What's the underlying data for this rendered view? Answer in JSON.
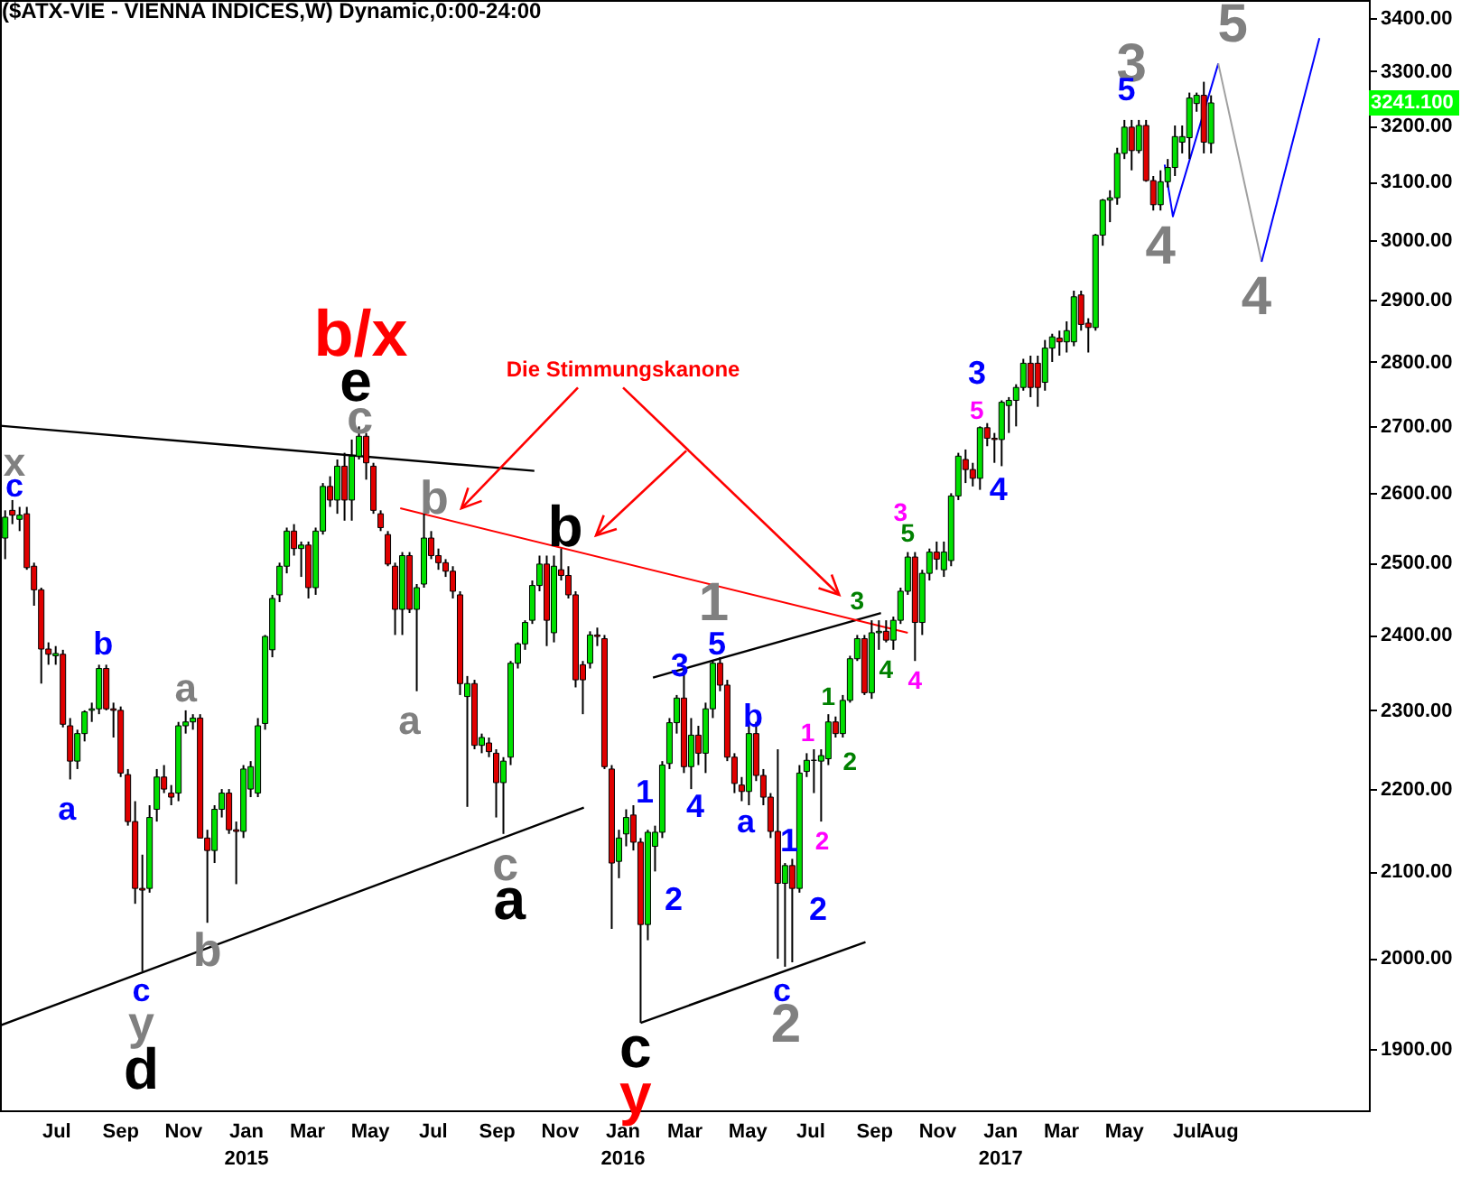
{
  "chart_data": {
    "type": "candlestick",
    "title": "($ATX-VIE - VIENNA INDICES,W) Dynamic,0:00-24:00",
    "log": true,
    "xlim": [
      "2014-05-07",
      "2017-12-24"
    ],
    "xticks": [
      {
        "value": "2014-07",
        "label": "Jul"
      },
      {
        "value": "2014-09",
        "label": "Sep"
      },
      {
        "value": "2014-11",
        "label": "Nov"
      },
      {
        "value": "2015-01",
        "label": "Jan\n2015"
      },
      {
        "value": "2015-03",
        "label": "Mar"
      },
      {
        "value": "2015-05",
        "label": "May"
      },
      {
        "value": "2015-07",
        "label": "Jul"
      },
      {
        "value": "2015-09",
        "label": "Sep"
      },
      {
        "value": "2015-11",
        "label": "Nov"
      },
      {
        "value": "2016-01",
        "label": "Jan\n2016"
      },
      {
        "value": "2016-03",
        "label": "Mar"
      },
      {
        "value": "2016-05",
        "label": "May"
      },
      {
        "value": "2016-07",
        "label": "Jul"
      },
      {
        "value": "2016-09",
        "label": "Sep"
      },
      {
        "value": "2016-11",
        "label": "Nov"
      },
      {
        "value": "2017-01",
        "label": "Jan\n2017"
      },
      {
        "value": "2017-03",
        "label": "Mar"
      },
      {
        "value": "2017-05",
        "label": "May"
      },
      {
        "value": "2017-07",
        "label": "Jul"
      },
      {
        "value": "2017-08",
        "label": "Aug"
      }
    ],
    "ylim": [
      1835,
      3435
    ],
    "yticks": [
      {
        "value": 1900,
        "label": "1900.00"
      },
      {
        "value": 2000,
        "label": "2000.00"
      },
      {
        "value": 2100,
        "label": "2100.00"
      },
      {
        "value": 2200,
        "label": "2200.00"
      },
      {
        "value": 2300,
        "label": "2300.00"
      },
      {
        "value": 2400,
        "label": "2400.00"
      },
      {
        "value": 2500,
        "label": "2500.00"
      },
      {
        "value": 2600,
        "label": "2600.00"
      },
      {
        "value": 2700,
        "label": "2700.00"
      },
      {
        "value": 2800,
        "label": "2800.00"
      },
      {
        "value": 2900,
        "label": "2900.00"
      },
      {
        "value": 3000,
        "label": "3000.00"
      },
      {
        "value": 3100,
        "label": "3100.00"
      },
      {
        "value": 3200,
        "label": "3200.00"
      },
      {
        "value": 3300,
        "label": "3300.00"
      },
      {
        "value": 3400,
        "label": "3400.00"
      }
    ],
    "x": [
      "2014-05-12",
      "2014-05-19",
      "2014-05-26",
      "2014-06-02",
      "2014-06-09",
      "2014-06-16",
      "2014-06-23",
      "2014-06-30",
      "2014-07-07",
      "2014-07-14",
      "2014-07-21",
      "2014-07-28",
      "2014-08-04",
      "2014-08-11",
      "2014-08-18",
      "2014-08-25",
      "2014-09-01",
      "2014-09-08",
      "2014-09-15",
      "2014-09-22",
      "2014-09-29",
      "2014-10-06",
      "2014-10-13",
      "2014-10-20",
      "2014-10-27",
      "2014-11-03",
      "2014-11-10",
      "2014-11-17",
      "2014-11-24",
      "2014-12-01",
      "2014-12-08",
      "2014-12-15",
      "2014-12-22",
      "2014-12-29",
      "2015-01-05",
      "2015-01-12",
      "2015-01-19",
      "2015-01-26",
      "2015-02-02",
      "2015-02-09",
      "2015-02-16",
      "2015-02-23",
      "2015-03-02",
      "2015-03-09",
      "2015-03-16",
      "2015-03-23",
      "2015-03-30",
      "2015-04-06",
      "2015-04-13",
      "2015-04-20",
      "2015-04-27",
      "2015-05-04",
      "2015-05-11",
      "2015-05-18",
      "2015-05-25",
      "2015-06-01",
      "2015-06-08",
      "2015-06-15",
      "2015-06-22",
      "2015-06-29",
      "2015-07-06",
      "2015-07-13",
      "2015-07-20",
      "2015-07-27",
      "2015-08-03",
      "2015-08-10",
      "2015-08-17",
      "2015-08-24",
      "2015-08-31",
      "2015-09-07",
      "2015-09-14",
      "2015-09-21",
      "2015-09-28",
      "2015-10-05",
      "2015-10-12",
      "2015-10-19",
      "2015-10-26",
      "2015-11-02",
      "2015-11-09",
      "2015-11-16",
      "2015-11-23",
      "2015-11-30",
      "2015-12-07",
      "2015-12-14",
      "2015-12-21",
      "2015-12-28",
      "2016-01-04",
      "2016-01-11",
      "2016-01-18",
      "2016-01-25",
      "2016-02-01",
      "2016-02-08",
      "2016-02-15",
      "2016-02-22",
      "2016-02-29",
      "2016-03-07",
      "2016-03-14",
      "2016-03-21",
      "2016-03-28",
      "2016-04-04",
      "2016-04-11",
      "2016-04-18",
      "2016-04-25",
      "2016-05-02",
      "2016-05-09",
      "2016-05-16",
      "2016-05-23",
      "2016-05-30",
      "2016-06-06",
      "2016-06-13",
      "2016-06-20",
      "2016-06-27",
      "2016-07-04",
      "2016-07-11",
      "2016-07-18",
      "2016-07-25",
      "2016-08-01",
      "2016-08-08",
      "2016-08-15",
      "2016-08-22",
      "2016-08-29",
      "2016-09-05",
      "2016-09-12",
      "2016-09-19",
      "2016-09-26",
      "2016-10-03",
      "2016-10-10",
      "2016-10-17",
      "2016-10-24",
      "2016-10-31",
      "2016-11-07",
      "2016-11-14",
      "2016-11-21",
      "2016-11-28",
      "2016-12-05",
      "2016-12-12",
      "2016-12-19",
      "2016-12-26",
      "2017-01-02",
      "2017-01-09",
      "2017-01-16",
      "2017-01-23",
      "2017-01-30",
      "2017-02-06",
      "2017-02-13",
      "2017-02-20",
      "2017-02-27",
      "2017-03-06",
      "2017-03-13",
      "2017-03-20",
      "2017-03-27",
      "2017-04-03",
      "2017-04-10",
      "2017-04-17",
      "2017-04-24",
      "2017-05-01",
      "2017-05-08",
      "2017-05-15",
      "2017-05-22",
      "2017-05-29",
      "2017-06-05",
      "2017-06-12",
      "2017-06-19",
      "2017-06-26",
      "2017-07-03",
      "2017-07-10",
      "2017-07-17",
      "2017-07-24"
    ],
    "ohlc": [
      [
        2535,
        2575,
        2505,
        2565
      ],
      [
        2575,
        2590,
        2555,
        2568
      ],
      [
        2562,
        2580,
        2545,
        2568
      ],
      [
        2570,
        2580,
        2490,
        2493
      ],
      [
        2495,
        2500,
        2440,
        2462
      ],
      [
        2462,
        2465,
        2335,
        2381
      ],
      [
        2381,
        2390,
        2360,
        2374
      ],
      [
        2372,
        2385,
        2360,
        2375
      ],
      [
        2374,
        2380,
        2278,
        2282
      ],
      [
        2280,
        2290,
        2212,
        2235
      ],
      [
        2235,
        2275,
        2225,
        2270
      ],
      [
        2270,
        2300,
        2260,
        2298
      ],
      [
        2300,
        2310,
        2285,
        2302
      ],
      [
        2302,
        2360,
        2295,
        2355
      ],
      [
        2355,
        2360,
        2300,
        2302
      ],
      [
        2302,
        2310,
        2265,
        2300
      ],
      [
        2300,
        2305,
        2215,
        2220
      ],
      [
        2218,
        2225,
        2155,
        2160
      ],
      [
        2160,
        2185,
        2062,
        2080
      ],
      [
        2080,
        2120,
        1985,
        2078
      ],
      [
        2080,
        2180,
        2075,
        2165
      ],
      [
        2175,
        2225,
        2160,
        2215
      ],
      [
        2215,
        2230,
        2195,
        2200
      ],
      [
        2195,
        2205,
        2180,
        2190
      ],
      [
        2195,
        2285,
        2185,
        2280
      ],
      [
        2280,
        2300,
        2270,
        2285
      ],
      [
        2285,
        2295,
        2275,
        2290
      ],
      [
        2290,
        2295,
        2140,
        2140
      ],
      [
        2140,
        2150,
        2040,
        2125
      ],
      [
        2125,
        2180,
        2110,
        2175
      ],
      [
        2175,
        2200,
        2165,
        2195
      ],
      [
        2195,
        2200,
        2145,
        2150
      ],
      [
        2150,
        2160,
        2085,
        2148
      ],
      [
        2148,
        2230,
        2140,
        2225
      ],
      [
        2200,
        2235,
        2190,
        2228
      ],
      [
        2195,
        2290,
        2190,
        2280
      ],
      [
        2283,
        2400,
        2275,
        2398
      ],
      [
        2380,
        2455,
        2370,
        2450
      ],
      [
        2455,
        2500,
        2445,
        2495
      ],
      [
        2495,
        2550,
        2485,
        2545
      ],
      [
        2545,
        2555,
        2510,
        2520
      ],
      [
        2520,
        2530,
        2480,
        2525
      ],
      [
        2525,
        2530,
        2450,
        2465
      ],
      [
        2465,
        2550,
        2455,
        2545
      ],
      [
        2545,
        2615,
        2540,
        2610
      ],
      [
        2610,
        2625,
        2580,
        2590
      ],
      [
        2590,
        2650,
        2570,
        2640
      ],
      [
        2640,
        2660,
        2560,
        2590
      ],
      [
        2590,
        2680,
        2560,
        2655
      ],
      [
        2655,
        2700,
        2650,
        2685
      ],
      [
        2685,
        2690,
        2620,
        2645
      ],
      [
        2640,
        2645,
        2570,
        2575
      ],
      [
        2570,
        2575,
        2545,
        2550
      ],
      [
        2540,
        2545,
        2495,
        2498
      ],
      [
        2495,
        2500,
        2400,
        2435
      ],
      [
        2435,
        2515,
        2400,
        2510
      ],
      [
        2510,
        2515,
        2430,
        2435
      ],
      [
        2435,
        2470,
        2325,
        2465
      ],
      [
        2470,
        2570,
        2465,
        2535
      ],
      [
        2535,
        2545,
        2505,
        2510
      ],
      [
        2510,
        2520,
        2490,
        2500
      ],
      [
        2500,
        2505,
        2480,
        2488
      ],
      [
        2488,
        2495,
        2450,
        2460
      ],
      [
        2455,
        2460,
        2320,
        2335
      ],
      [
        2318,
        2345,
        2178,
        2335
      ],
      [
        2335,
        2340,
        2250,
        2255
      ],
      [
        2255,
        2270,
        2245,
        2265
      ],
      [
        2258,
        2265,
        2240,
        2247
      ],
      [
        2245,
        2250,
        2165,
        2208
      ],
      [
        2208,
        2240,
        2145,
        2235
      ],
      [
        2240,
        2365,
        2230,
        2362
      ],
      [
        2362,
        2390,
        2355,
        2388
      ],
      [
        2388,
        2420,
        2380,
        2417
      ],
      [
        2420,
        2475,
        2415,
        2468
      ],
      [
        2468,
        2510,
        2460,
        2498
      ],
      [
        2498,
        2510,
        2385,
        2420
      ],
      [
        2403,
        2510,
        2390,
        2495
      ],
      [
        2490,
        2520,
        2475,
        2482
      ],
      [
        2482,
        2495,
        2450,
        2455
      ],
      [
        2455,
        2460,
        2330,
        2340
      ],
      [
        2360,
        2365,
        2295,
        2340
      ],
      [
        2362,
        2405,
        2355,
        2400
      ],
      [
        2400,
        2410,
        2385,
        2398
      ],
      [
        2395,
        2400,
        2225,
        2228
      ],
      [
        2225,
        2230,
        2033,
        2110
      ],
      [
        2112,
        2150,
        2092,
        2140
      ],
      [
        2145,
        2175,
        2130,
        2165
      ],
      [
        2168,
        2180,
        2125,
        2135
      ],
      [
        2135,
        2140,
        1928,
        2038
      ],
      [
        2038,
        2150,
        2020,
        2147
      ],
      [
        2130,
        2155,
        2100,
        2147
      ],
      [
        2147,
        2235,
        2140,
        2230
      ],
      [
        2232,
        2290,
        2225,
        2284
      ],
      [
        2284,
        2320,
        2270,
        2316
      ],
      [
        2316,
        2355,
        2220,
        2228
      ],
      [
        2228,
        2290,
        2200,
        2268
      ],
      [
        2268,
        2280,
        2230,
        2245
      ],
      [
        2245,
        2310,
        2220,
        2302
      ],
      [
        2302,
        2365,
        2290,
        2362
      ],
      [
        2362,
        2370,
        2325,
        2333
      ],
      [
        2333,
        2340,
        2235,
        2240
      ],
      [
        2240,
        2245,
        2195,
        2207
      ],
      [
        2205,
        2215,
        2185,
        2197
      ],
      [
        2197,
        2285,
        2180,
        2270
      ],
      [
        2270,
        2285,
        2210,
        2217
      ],
      [
        2217,
        2225,
        2180,
        2190
      ],
      [
        2190,
        2195,
        2140,
        2148
      ],
      [
        2148,
        2250,
        1999,
        2086
      ],
      [
        2086,
        2110,
        1990,
        2107
      ],
      [
        2107,
        2115,
        1995,
        2080
      ],
      [
        2080,
        2230,
        2075,
        2220
      ],
      [
        2222,
        2245,
        2215,
        2236
      ],
      [
        2236,
        2250,
        2195,
        2236
      ],
      [
        2235,
        2250,
        2160,
        2242
      ],
      [
        2238,
        2295,
        2230,
        2285
      ],
      [
        2285,
        2292,
        2265,
        2270
      ],
      [
        2270,
        2320,
        2265,
        2313
      ],
      [
        2313,
        2372,
        2310,
        2368
      ],
      [
        2368,
        2400,
        2365,
        2395
      ],
      [
        2395,
        2400,
        2320,
        2323
      ],
      [
        2323,
        2420,
        2315,
        2403
      ],
      [
        2403,
        2420,
        2380,
        2405
      ],
      [
        2405,
        2420,
        2390,
        2393
      ],
      [
        2393,
        2425,
        2380,
        2420
      ],
      [
        2420,
        2465,
        2415,
        2460
      ],
      [
        2460,
        2515,
        2455,
        2508
      ],
      [
        2508,
        2515,
        2365,
        2417
      ],
      [
        2417,
        2490,
        2400,
        2485
      ],
      [
        2485,
        2520,
        2475,
        2515
      ],
      [
        2515,
        2530,
        2490,
        2505
      ],
      [
        2490,
        2530,
        2480,
        2515
      ],
      [
        2503,
        2600,
        2495,
        2596
      ],
      [
        2596,
        2660,
        2590,
        2655
      ],
      [
        2650,
        2665,
        2615,
        2635
      ],
      [
        2635,
        2645,
        2610,
        2622
      ],
      [
        2622,
        2700,
        2605,
        2698
      ],
      [
        2698,
        2705,
        2670,
        2682
      ],
      [
        2682,
        2690,
        2645,
        2680
      ],
      [
        2680,
        2740,
        2640,
        2737
      ],
      [
        2732,
        2745,
        2690,
        2740
      ],
      [
        2740,
        2765,
        2700,
        2760
      ],
      [
        2760,
        2805,
        2755,
        2798
      ],
      [
        2798,
        2810,
        2745,
        2760
      ],
      [
        2798,
        2810,
        2730,
        2760
      ],
      [
        2768,
        2835,
        2755,
        2822
      ],
      [
        2822,
        2845,
        2800,
        2840
      ],
      [
        2838,
        2850,
        2810,
        2832
      ],
      [
        2832,
        2865,
        2815,
        2850
      ],
      [
        2832,
        2915,
        2825,
        2905
      ],
      [
        2908,
        2915,
        2850,
        2860
      ],
      [
        2862,
        2870,
        2815,
        2855
      ],
      [
        2855,
        3010,
        2850,
        3008
      ],
      [
        3008,
        3070,
        2990,
        3068
      ],
      [
        3068,
        3085,
        3030,
        3072
      ],
      [
        3072,
        3160,
        3060,
        3150
      ],
      [
        3150,
        3210,
        3140,
        3197
      ],
      [
        3197,
        3210,
        3120,
        3155
      ],
      [
        3155,
        3210,
        3150,
        3200
      ],
      [
        3200,
        3210,
        3100,
        3102
      ],
      [
        3102,
        3110,
        3050,
        3060
      ],
      [
        3060,
        3120,
        3050,
        3100
      ],
      [
        3100,
        3140,
        3090,
        3125
      ],
      [
        3125,
        3200,
        3110,
        3180
      ],
      [
        3170,
        3200,
        3150,
        3180
      ],
      [
        3178,
        3260,
        3140,
        3250
      ],
      [
        3240,
        3260,
        3225,
        3255
      ],
      [
        3255,
        3280,
        3150,
        3170
      ],
      [
        3168,
        3255,
        3150,
        3241.1
      ]
    ],
    "series": [
      {
        "type": "line",
        "color": "#000000",
        "x": [
          "2014-05-07",
          "2015-10-07"
        ],
        "values": [
          2701,
          2633
        ]
      },
      {
        "type": "line",
        "color": "#000000",
        "x": [
          "2014-05-07",
          "2015-11-24"
        ],
        "values": [
          1925,
          2177
        ]
      },
      {
        "type": "line",
        "color": "#000000",
        "x": [
          "2016-01-30",
          "2016-09-07"
        ],
        "values": [
          2343,
          2430
        ]
      },
      {
        "type": "line",
        "color": "#000000",
        "x": [
          "2016-01-18",
          "2016-08-23"
        ],
        "values": [
          1928,
          2018
        ]
      },
      {
        "type": "line",
        "color": "#ff0000",
        "x": [
          "2015-05-30",
          "2016-10-03"
        ],
        "values": [
          2578,
          2403
        ]
      },
      {
        "type": "line",
        "color": "#0000ff",
        "x": [
          "2017-06-09",
          "2017-06-17",
          "2017-07-31"
        ],
        "values": [
          3130,
          3040,
          3314
        ]
      },
      {
        "type": "line",
        "color": "#a0a0a0",
        "x": [
          "2017-07-31",
          "2017-09-11"
        ],
        "values": [
          3314,
          2963
        ]
      },
      {
        "type": "line",
        "color": "#0000ff",
        "x": [
          "2017-09-11",
          "2017-11-06"
        ],
        "values": [
          2963,
          3362
        ]
      }
    ],
    "annotations": [
      "x",
      "c",
      "b",
      "a",
      "a",
      "b",
      "c",
      "y",
      "d",
      {
        "text": "b/x",
        "x": "2015-04-20",
        "y": 2700
      },
      "e",
      "c",
      "b",
      "a",
      "Die Stimmungskanone",
      "b",
      "c",
      "a",
      "c",
      "y",
      "1",
      "3",
      "5",
      "1",
      "2",
      "4",
      "b",
      "a",
      "1",
      "2",
      "c",
      "2",
      "1",
      "2",
      {
        "text": "1",
        "x": "2016-07-18",
        "y": 2295
      },
      "2",
      "3",
      "4",
      {
        "text": "5",
        "x": "2016-10-03",
        "y": 2515
      },
      "3",
      "4",
      "3",
      "5",
      "4",
      "3",
      "5",
      "4",
      "5",
      "4",
      "3241.100"
    ]
  }
}
